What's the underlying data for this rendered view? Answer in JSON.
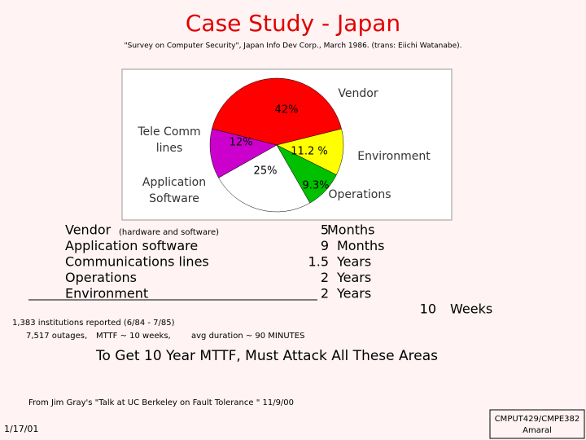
{
  "title": "Case Study - Japan",
  "subtitle": "\"Survey on Computer Security\", Japan Info Dev Corp., March 1986. (trans: Eiichi Watanabe).",
  "chart_data": {
    "type": "pie",
    "categories": [
      "Vendor",
      "Environment",
      "Operations",
      "Application Software",
      "Tele Comm lines"
    ],
    "values": [
      42,
      11.2,
      9.3,
      25,
      12
    ],
    "value_labels": [
      "42%",
      "11.2 %",
      "9.3%",
      "25%",
      "12%"
    ],
    "colors": [
      "#ff0000",
      "#ffff00",
      "#00c000",
      "#ffffff",
      "#cc00cc"
    ]
  },
  "table": {
    "rows": [
      {
        "cause": "Vendor",
        "detail": "(hardware and software)",
        "amount": "5",
        "unit": "Months"
      },
      {
        "cause": "Application software",
        "amount": "9",
        "unit": "Months"
      },
      {
        "cause": "Communications lines",
        "amount": "1.5",
        "unit": "Years"
      },
      {
        "cause": "Operations",
        "amount": "2",
        "unit": "Years"
      },
      {
        "cause": "Environment",
        "amount": "2",
        "unit": "Years"
      }
    ],
    "total": {
      "amount": "10",
      "unit": "Weeks"
    }
  },
  "notes": [
    "1,383 institutions reported (6/84 - 7/85)",
    "7,517 outages,",
    "MTTF ~ 10 weeks,",
    "avg duration ~ 90 MINUTES"
  ],
  "conclusion": "To Get 10 Year MTTF, Must Attack All These Areas",
  "source": "From Jim Gray's \"Talk at UC Berkeley on Fault Tolerance \" 11/9/00",
  "date": "1/17/01",
  "footer": [
    "CMPUT429/CMPE382",
    "Amaral"
  ]
}
